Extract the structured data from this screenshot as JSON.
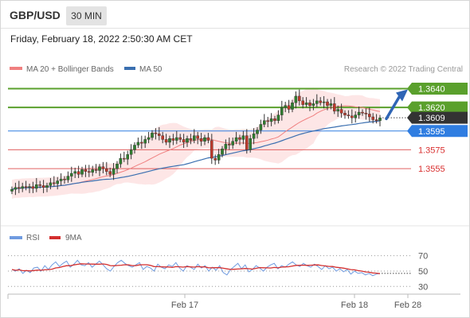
{
  "header": {
    "symbol": "GBP/USD",
    "timeframe": "30 MIN",
    "datetime": "Friday, February 18, 2022 2:50:30 AM CET"
  },
  "credit": "Research © 2022 Trading Central",
  "colors": {
    "candle_up": "#2f7d2f",
    "candle_down": "#c0392b",
    "ma20": "#f08080",
    "bollinger_fill": "#fde6e6",
    "ma50": "#3a6fb0",
    "resistance": "#5aa02c",
    "current": "#333333",
    "pivot": "#2f7de1",
    "support": "#e06060",
    "rsi": "#6f9be0",
    "rsi_ma": "#d32f2f",
    "arrow": "#2f65b5"
  },
  "chart_data": [
    {
      "type": "candlestick",
      "title": "GBP/USD 30 MIN",
      "legend": [
        {
          "name": "MA 20 + Bollinger Bands",
          "color": "#f08080"
        },
        {
          "name": "MA 50",
          "color": "#3a6fb0"
        }
      ],
      "legend_position": "top-left",
      "ylim": [
        1.3523,
        1.3648
      ],
      "x_ticks": [
        "Feb 17",
        "Feb 18",
        "Feb 28"
      ],
      "levels": [
        {
          "label": "1.3640",
          "value": 1.364,
          "kind": "resistance"
        },
        {
          "label": "1.3620",
          "value": 1.362,
          "kind": "resistance"
        },
        {
          "label": "1.3609",
          "value": 1.3609,
          "kind": "current"
        },
        {
          "label": "1.3595",
          "value": 1.3595,
          "kind": "pivot"
        },
        {
          "label": "1.3575",
          "value": 1.3575,
          "kind": "support"
        },
        {
          "label": "1.3555",
          "value": 1.3555,
          "kind": "support"
        }
      ],
      "projection": {
        "from": 1.3608,
        "to": 1.364,
        "direction": "up"
      },
      "close_estimates": [
        1.3533,
        1.3535,
        1.3534,
        1.3536,
        1.3535,
        1.3536,
        1.3534,
        1.3538,
        1.3537,
        1.3535,
        1.3537,
        1.354,
        1.3539,
        1.3542,
        1.3544,
        1.3543,
        1.3547,
        1.355,
        1.3552,
        1.3549,
        1.3554,
        1.3552,
        1.3551,
        1.3554,
        1.3553,
        1.3557,
        1.3555,
        1.3552,
        1.3549,
        1.3555,
        1.356,
        1.3566,
        1.3565,
        1.357,
        1.3575,
        1.358,
        1.3583,
        1.3582,
        1.3586,
        1.3588,
        1.3593,
        1.3592,
        1.359,
        1.3586,
        1.3583,
        1.3587,
        1.3585,
        1.3588,
        1.3586,
        1.3583,
        1.3587,
        1.3585,
        1.359,
        1.3587,
        1.3584,
        1.3588,
        1.3585,
        1.3566,
        1.3564,
        1.357,
        1.3576,
        1.3581,
        1.358,
        1.3584,
        1.3588,
        1.3586,
        1.359,
        1.3575,
        1.3587,
        1.3592,
        1.3596,
        1.3602,
        1.3606,
        1.3605,
        1.3608,
        1.3606,
        1.3612,
        1.362,
        1.3622,
        1.3618,
        1.3625,
        1.3632,
        1.3627,
        1.3623,
        1.3625,
        1.3622,
        1.3624,
        1.3627,
        1.3625,
        1.3626,
        1.3622,
        1.3624,
        1.3616,
        1.3618,
        1.3614,
        1.3612,
        1.3611,
        1.3609,
        1.3612,
        1.3615,
        1.3614,
        1.3613,
        1.361,
        1.3607,
        1.3606,
        1.3609
      ]
    },
    {
      "type": "line",
      "legend": [
        {
          "name": "RSI",
          "color": "#6f9be0"
        },
        {
          "name": "9MA",
          "color": "#d32f2f"
        }
      ],
      "ylim": [
        22,
        80
      ],
      "y_ticks": [
        "70",
        "50",
        "30"
      ],
      "rsi_estimates": [
        52,
        50,
        53,
        47,
        51,
        48,
        54,
        55,
        50,
        57,
        52,
        58,
        62,
        56,
        60,
        63,
        55,
        59,
        64,
        58,
        57,
        61,
        55,
        59,
        63,
        58,
        53,
        50,
        56,
        61,
        64,
        60,
        57,
        55,
        58,
        61,
        52,
        56,
        54,
        50,
        59,
        55,
        53,
        58,
        56,
        61,
        54,
        50,
        57,
        55,
        52,
        59,
        54,
        57,
        50,
        55,
        51,
        57,
        48,
        45,
        52,
        56,
        60,
        53,
        58,
        49,
        52,
        57,
        54,
        50,
        55,
        58,
        60,
        53,
        57,
        55,
        59,
        62,
        58,
        56,
        60,
        57,
        55,
        59,
        56,
        52,
        57,
        53,
        55,
        50,
        53,
        49,
        52,
        46,
        50,
        47,
        48,
        45,
        47,
        44,
        46,
        47
      ]
    }
  ]
}
